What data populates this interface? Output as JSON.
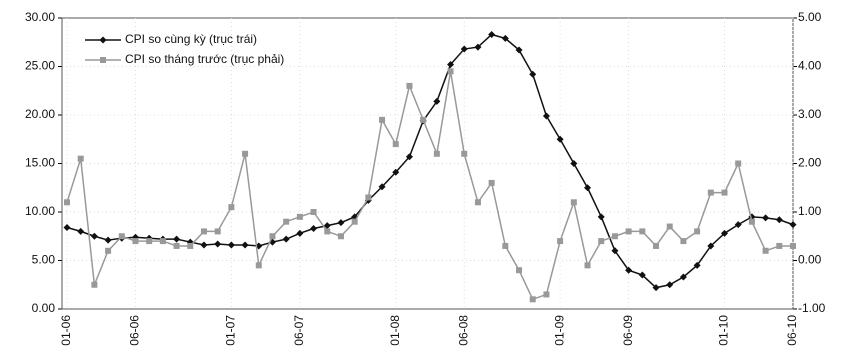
{
  "chart_data": {
    "type": "line",
    "categories": [
      "01-06",
      null,
      null,
      null,
      null,
      "06-06",
      null,
      null,
      null,
      null,
      null,
      null,
      "01-07",
      null,
      null,
      null,
      null,
      "06-07",
      null,
      null,
      null,
      null,
      null,
      null,
      "01-08",
      null,
      null,
      null,
      null,
      "06-08",
      null,
      null,
      null,
      null,
      null,
      null,
      "01-09",
      null,
      null,
      null,
      null,
      "06-09",
      null,
      null,
      null,
      null,
      null,
      null,
      "01-10",
      null,
      null,
      null,
      null,
      "06-10"
    ],
    "series": [
      {
        "name": "CPI so cùng kỳ (trục trái)",
        "color": "#111111",
        "marker": "diamond",
        "values": [
          8.4,
          8.0,
          7.5,
          7.1,
          7.3,
          7.4,
          7.3,
          7.2,
          7.2,
          6.9,
          6.6,
          6.7,
          6.6,
          6.6,
          6.5,
          6.9,
          7.2,
          7.8,
          8.3,
          8.6,
          8.9,
          9.5,
          11.2,
          12.6,
          14.1,
          15.7,
          19.4,
          21.4,
          25.2,
          26.8,
          27.0,
          28.3,
          27.9,
          26.7,
          24.2,
          19.9,
          17.5,
          15.0,
          12.5,
          9.5,
          6.0,
          4.0,
          3.5,
          2.2,
          2.5,
          3.3,
          4.5,
          6.5,
          7.8,
          8.7,
          9.5,
          9.4,
          9.2,
          8.7
        ]
      },
      {
        "name": "CPI so tháng trước (trục phải)",
        "color": "#999999",
        "marker": "square",
        "axis": "y2",
        "values": [
          1.2,
          2.1,
          -0.5,
          0.2,
          0.5,
          0.4,
          0.4,
          0.4,
          0.3,
          0.3,
          0.6,
          0.6,
          1.1,
          2.2,
          -0.1,
          0.5,
          0.8,
          0.9,
          1.0,
          0.6,
          0.5,
          0.8,
          1.3,
          2.9,
          2.4,
          3.6,
          2.9,
          2.2,
          3.9,
          2.2,
          1.2,
          1.6,
          0.3,
          -0.2,
          -0.8,
          -0.7,
          0.4,
          1.2,
          -0.1,
          0.4,
          0.5,
          0.6,
          0.6,
          0.3,
          0.7,
          0.4,
          0.6,
          1.4,
          1.4,
          2.0,
          0.8,
          0.2,
          0.3,
          0.3
        ]
      }
    ],
    "ylim": [
      0,
      30
    ],
    "yticks": [
      {
        "value": 0,
        "label": "0.00"
      },
      {
        "value": 5,
        "label": "5.00"
      },
      {
        "value": 10,
        "label": "10.00"
      },
      {
        "value": 15,
        "label": "15.00"
      },
      {
        "value": 20,
        "label": "20.00"
      },
      {
        "value": 25,
        "label": "25.00"
      },
      {
        "value": 30,
        "label": "30.00"
      }
    ],
    "y2lim": [
      -1,
      5
    ],
    "y2ticks": [
      {
        "value": -1,
        "label": "-1.00"
      },
      {
        "value": 0,
        "label": "0.00"
      },
      {
        "value": 1,
        "label": "1.00"
      },
      {
        "value": 2,
        "label": "2.00"
      },
      {
        "value": 3,
        "label": "3.00"
      },
      {
        "value": 4,
        "label": "4.00"
      },
      {
        "value": 5,
        "label": "5.00"
      }
    ],
    "grid": true,
    "legend": "upper left"
  }
}
